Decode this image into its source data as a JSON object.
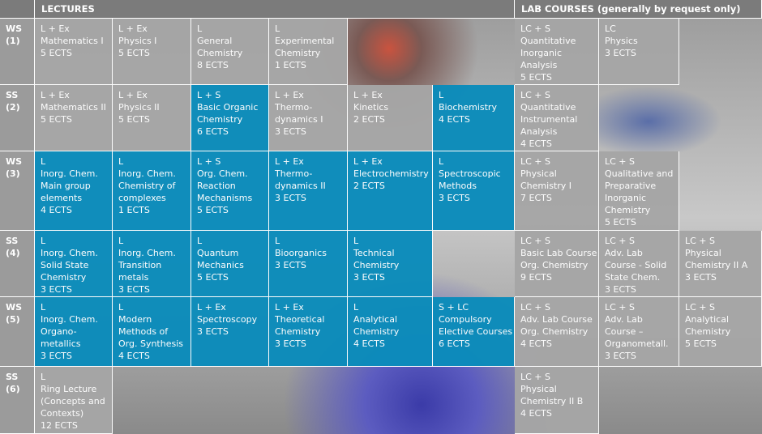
{
  "header": {
    "corner": "",
    "lectures": "LECTURES",
    "labs": "LAB COURSES (generally by request only)"
  },
  "rows": [
    {
      "semester": [
        "WS",
        "(1)"
      ],
      "cells": [
        {
          "color": "#a6a6a6",
          "lines": [
            "L + Ex",
            "Mathematics I",
            "5 ECTS"
          ]
        },
        {
          "color": "#a6a6a6",
          "lines": [
            "L + Ex",
            "Physics I",
            "5 ECTS"
          ]
        },
        {
          "color": "#a6a6a6",
          "lines": [
            "L",
            "General",
            "Chemistry",
            "8 ECTS"
          ]
        },
        {
          "color": "#a6a6a6",
          "lines": [
            "L",
            "Experimental",
            "Chemistry",
            "1 ECTS"
          ]
        },
        null,
        null,
        {
          "color": "#a6a6a6",
          "lines": [
            "LC + S",
            "Quantitative",
            "Inorganic",
            "Analysis",
            "5 ECTS"
          ]
        },
        {
          "color": "#a6a6a6",
          "lines": [
            "LC",
            "Physics",
            "3 ECTS"
          ]
        },
        null
      ]
    },
    {
      "semester": [
        "SS",
        "(2)"
      ],
      "cells": [
        {
          "color": "#a6a6a6",
          "lines": [
            "L + Ex",
            "Mathematics II",
            "5 ECTS"
          ]
        },
        {
          "color": "#a6a6a6",
          "lines": [
            "L + Ex",
            "Physics II",
            "5 ECTS"
          ]
        },
        {
          "color": "#0b8cbb",
          "lines": [
            "L + S",
            "Basic Organic",
            "Chemistry",
            "6 ECTS"
          ]
        },
        {
          "color": "#a6a6a6",
          "lines": [
            "L + Ex",
            "Thermo-",
            "dynamics I",
            "3 ECTS"
          ]
        },
        {
          "color": "#a6a6a6",
          "lines": [
            "L + Ex",
            "Kinetics",
            "2 ECTS"
          ]
        },
        {
          "color": "#0b8cbb",
          "lines": [
            "L",
            "Biochemistry",
            "4 ECTS"
          ]
        },
        {
          "color": "#a6a6a6",
          "lines": [
            "LC + S",
            "Quantitative",
            "Instrumental",
            "Analysis",
            "4 ECTS"
          ]
        },
        null,
        null
      ]
    },
    {
      "semester": [
        "WS",
        "(3)"
      ],
      "cells": [
        {
          "color": "#0b8cbb",
          "lines": [
            "L",
            "Inorg. Chem.",
            "Main group",
            "elements",
            "4 ECTS"
          ]
        },
        {
          "color": "#0b8cbb",
          "lines": [
            "L",
            "Inorg. Chem.",
            "Chemistry of",
            "complexes",
            "1 ECTS"
          ]
        },
        {
          "color": "#0b8cbb",
          "lines": [
            "L + S",
            "Org. Chem.",
            "Reaction",
            "Mechanisms",
            "5 ECTS"
          ]
        },
        {
          "color": "#0b8cbb",
          "lines": [
            "L + Ex",
            "Thermo-",
            "dynamics II",
            "3 ECTS"
          ]
        },
        {
          "color": "#0b8cbb",
          "lines": [
            "L + Ex",
            "Electrochemistry",
            "2 ECTS"
          ]
        },
        {
          "color": "#0b8cbb",
          "lines": [
            "L",
            "Spectroscopic",
            "Methods",
            "3 ECTS"
          ]
        },
        {
          "color": "#a6a6a6",
          "lines": [
            "LC + S",
            "Physical",
            "Chemistry I",
            "7 ECTS"
          ]
        },
        {
          "color": "#a6a6a6",
          "lines": [
            "LC + S",
            "Qualitative and",
            "Preparative",
            "Inorganic",
            "Chemistry",
            "5 ECTS"
          ]
        },
        null
      ]
    },
    {
      "semester": [
        "SS",
        "(4)"
      ],
      "cells": [
        {
          "color": "#0b8cbb",
          "lines": [
            "L",
            "Inorg. Chem.",
            "Solid State",
            "Chemistry",
            "3 ECTS"
          ]
        },
        {
          "color": "#0b8cbb",
          "lines": [
            "L",
            "Inorg. Chem.",
            "Transition",
            "metals",
            "3 ECTS"
          ]
        },
        {
          "color": "#0b8cbb",
          "lines": [
            "L",
            "Quantum",
            "Mechanics",
            "5 ECTS"
          ]
        },
        {
          "color": "#0b8cbb",
          "lines": [
            "L",
            "Bioorganics",
            "3 ECTS"
          ]
        },
        {
          "color": "#0b8cbb",
          "lines": [
            "L",
            "Technical",
            "Chemistry",
            "3 ECTS"
          ]
        },
        null,
        {
          "color": "#a6a6a6",
          "lines": [
            "LC + S",
            "Basic Lab Course",
            "Org. Chemistry",
            "9 ECTS"
          ]
        },
        {
          "color": "#a6a6a6",
          "lines": [
            "LC + S",
            "Adv. Lab",
            "Course - Solid",
            "State Chem.",
            "3 ECTS"
          ]
        },
        {
          "color": "#a6a6a6",
          "lines": [
            "LC + S",
            "Physical",
            "Chemistry II A",
            "3 ECTS"
          ]
        }
      ]
    },
    {
      "semester": [
        "WS",
        "(5)"
      ],
      "cells": [
        {
          "color": "#0b8cbb",
          "lines": [
            "L",
            "Inorg. Chem.",
            "Organo-",
            "metallics",
            "3 ECTS"
          ]
        },
        {
          "color": "#0b8cbb",
          "lines": [
            "L",
            "Modern",
            "Methods of",
            "Org. Synthesis",
            "4 ECTS"
          ]
        },
        {
          "color": "#0b8cbb",
          "lines": [
            "L + Ex",
            "Spectroscopy",
            "3 ECTS"
          ]
        },
        {
          "color": "#0b8cbb",
          "lines": [
            "L + Ex",
            "Theoretical",
            "Chemistry",
            "3 ECTS"
          ]
        },
        {
          "color": "#0b8cbb",
          "lines": [
            "L",
            "Analytical",
            "Chemistry",
            "4 ECTS"
          ]
        },
        {
          "color": "#0b8cbb",
          "lines": [
            "S + LC",
            "Compulsory",
            "Elective Courses",
            "6 ECTS"
          ]
        },
        {
          "color": "#a6a6a6",
          "lines": [
            "LC + S",
            "Adv. Lab Course",
            "Org. Chemistry",
            "4 ECTS"
          ]
        },
        {
          "color": "#a6a6a6",
          "lines": [
            "LC + S",
            "Adv. Lab",
            "Course –",
            "Organometall.",
            "3 ECTS"
          ]
        },
        {
          "color": "#a6a6a6",
          "lines": [
            "LC + S",
            "Analytical",
            "Chemistry",
            "5 ECTS"
          ]
        }
      ]
    },
    {
      "semester": [
        "SS",
        "(6)"
      ],
      "cells": [
        {
          "color": "#a6a6a6",
          "lines": [
            "L",
            "Ring Lecture",
            "(Concepts and",
            "Contexts)",
            "12 ECTS"
          ]
        },
        null,
        null,
        null,
        null,
        null,
        {
          "color": "#a6a6a6",
          "lines": [
            "LC + S",
            "Physical",
            "Chemistry II B",
            "4 ECTS"
          ]
        },
        null,
        null
      ]
    }
  ]
}
